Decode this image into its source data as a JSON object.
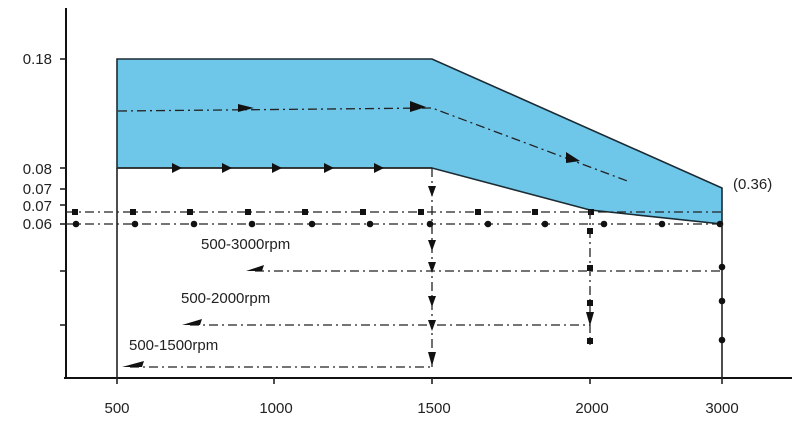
{
  "chart_data": {
    "type": "area",
    "x_ticks": [
      500,
      1000,
      1500,
      2000,
      3000
    ],
    "y_ticks": [
      "0.18",
      "0.08",
      "0.07",
      "0.07",
      "0.06"
    ],
    "y_tick_values": [
      0.18,
      0.08,
      0.07,
      0.07,
      0.06
    ],
    "band": {
      "x": [
        500,
        1500,
        3000
      ],
      "upper": [
        0.18,
        0.18,
        0.07
      ],
      "lower": [
        0.08,
        0.08,
        0.06
      ]
    },
    "series": [
      {
        "name": "500-3000rpm",
        "x_range": [
          500,
          3000
        ]
      },
      {
        "name": "500-2000rpm",
        "x_range": [
          500,
          2000
        ]
      },
      {
        "name": "500-1500rpm",
        "x_range": [
          500,
          1500
        ]
      }
    ],
    "annotations": [
      "(0.36)"
    ],
    "colors": {
      "band": "#6EC6E8",
      "line": "#222222"
    }
  }
}
